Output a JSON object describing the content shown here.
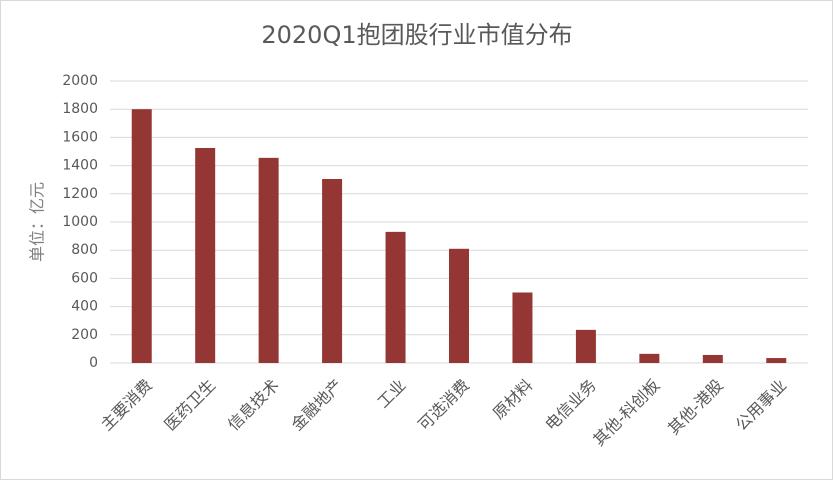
{
  "chart_data": {
    "type": "bar",
    "title": "2020Q1抱团股行业市值分布",
    "y_label": "单位：亿元",
    "categories": [
      "主要消费",
      "医药卫生",
      "信息技术",
      "金融地产",
      "工业",
      "可选消费",
      "原材料",
      "电信业务",
      "其他-科创板",
      "其他-港股",
      "公用事业"
    ],
    "values": [
      1800,
      1525,
      1455,
      1305,
      930,
      810,
      500,
      235,
      65,
      57,
      35
    ],
    "color": "#943634",
    "ylim": [
      0,
      2000
    ],
    "yticks": [
      0,
      200,
      400,
      600,
      800,
      1000,
      1200,
      1400,
      1600,
      1800,
      2000
    ],
    "grid": true
  }
}
